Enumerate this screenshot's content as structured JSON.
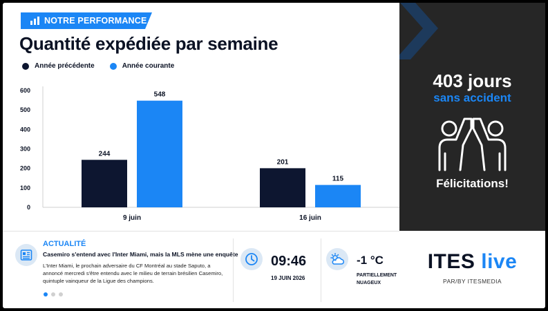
{
  "section_tag": "NOTRE PERFORMANCE",
  "title": "Quantité expédiée par semaine",
  "legend": [
    {
      "label": "Année précédente",
      "color": "#0d1630"
    },
    {
      "label": "Année courante",
      "color": "#1b86f5"
    }
  ],
  "chart_data": {
    "type": "bar",
    "title": "Quantité expédiée par semaine",
    "categories": [
      "9 juin",
      "16 juin"
    ],
    "series": [
      {
        "name": "Année précédente",
        "values": [
          244,
          201
        ],
        "color": "#0d1630"
      },
      {
        "name": "Année courante",
        "values": [
          548,
          115
        ],
        "color": "#1b86f5"
      }
    ],
    "yticks": [
      0,
      100,
      200,
      300,
      400,
      500,
      600
    ],
    "ylim": [
      0,
      600
    ],
    "grid": false,
    "legend_position": "top-left"
  },
  "side": {
    "days": "403 jours",
    "subtitle": "sans accident",
    "congrats": "Félicitations!",
    "accent": "#1b86f5",
    "icon": "high-five-icon"
  },
  "news": {
    "label": "ACTUALITÉ",
    "headline": "Casemiro s'entend avec l'Inter Miami, mais la MLS mène une enquête",
    "body": "L'Inter Miami, le prochain adversaire du CF Montréal au stade Saputo, a annoncé mercredi s'être entendu avec le milieu de terrain brésilien Casemiro, quintuple vainqueur de la Ligue des champions.",
    "slide_count": 3,
    "active_slide": 0
  },
  "clock": {
    "time": "09:46",
    "date": "19 JUIN 2026"
  },
  "weather": {
    "temp": "-1 °C",
    "condition": "PARTIELLEMENT NUAGEUX",
    "icon": "partly-cloudy-icon"
  },
  "brand": {
    "name_part1": "ITES",
    "name_part2": "live",
    "byline": "PAR/BY ITESMEDIA"
  }
}
